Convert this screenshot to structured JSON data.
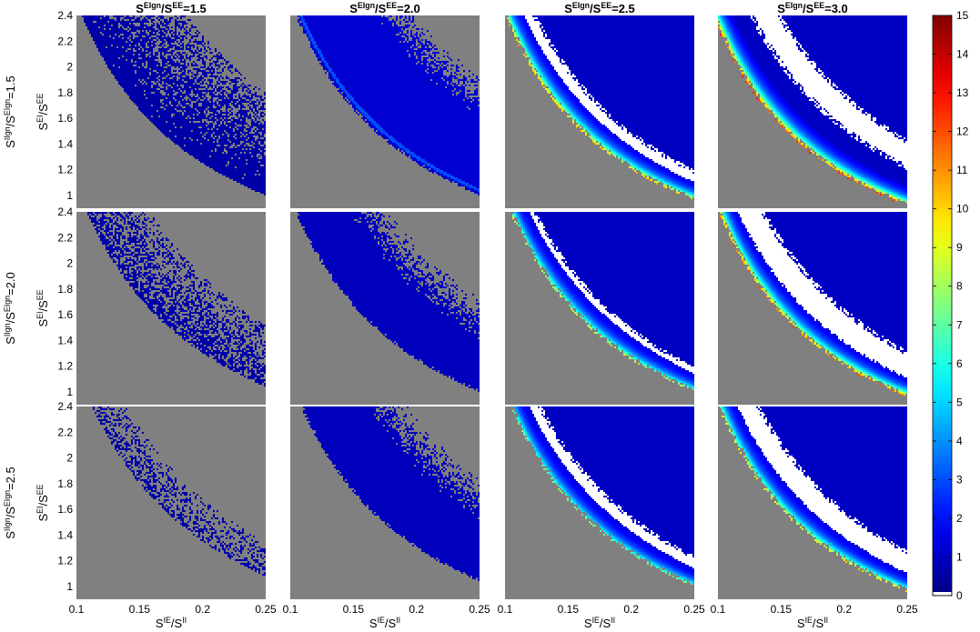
{
  "chart_data": {
    "type": "heatmap",
    "grid": false,
    "col_titles": [
      {
        "base": "S",
        "sup1": "EIgn",
        "mid": "/S",
        "sup2": "EE",
        "value": "=1.5"
      },
      {
        "base": "S",
        "sup1": "EIgn",
        "mid": "/S",
        "sup2": "EE",
        "value": "=2.0"
      },
      {
        "base": "S",
        "sup1": "EIgn",
        "mid": "/S",
        "sup2": "EE",
        "value": "=2.5"
      },
      {
        "base": "S",
        "sup1": "EIgn",
        "mid": "/S",
        "sup2": "EE",
        "value": "=3.0"
      }
    ],
    "row_titles": [
      {
        "base": "S",
        "sup1": "IIgn",
        "mid": "/S",
        "sup2": "EIgn",
        "value": "=1.5"
      },
      {
        "base": "S",
        "sup1": "IIgn",
        "mid": "/S",
        "sup2": "EIgn",
        "value": "=2.0"
      },
      {
        "base": "S",
        "sup1": "IIgn",
        "mid": "/S",
        "sup2": "EIgn",
        "value": "=2.5"
      }
    ],
    "xlabel": {
      "base": "S",
      "sup1": "IE",
      "mid": "/S",
      "sup2": "II"
    },
    "ylabel": {
      "base": "S",
      "sup1": "EI",
      "mid": "/S",
      "sup2": "EE"
    },
    "x_ticks": [
      0.1,
      0.15,
      0.2,
      0.25
    ],
    "x_tick_labels": [
      "0.1",
      "0.15",
      "0.2",
      "0.25"
    ],
    "y_ticks": [
      1,
      1.2,
      1.4,
      1.6,
      1.8,
      2,
      2.2,
      2.4
    ],
    "y_tick_labels": [
      "1",
      "1.2",
      "1.4",
      "1.6",
      "1.8",
      "2",
      "2.2",
      "2.4"
    ],
    "xlim": [
      0.1,
      0.25
    ],
    "ylim": [
      0.9,
      2.4
    ],
    "colorbar": {
      "min": 0,
      "max": 15,
      "ticks": [
        0,
        1,
        2,
        3,
        4,
        5,
        6,
        7,
        8,
        9,
        10,
        11,
        12,
        13,
        14,
        15
      ],
      "tick_labels": [
        "0",
        "1",
        "2",
        "3",
        "4",
        "5",
        "6",
        "7",
        "8",
        "9",
        "10",
        "11",
        "12",
        "13",
        "14",
        "15"
      ],
      "colormap": "jet"
    },
    "colors": {
      "masked_region": "#808080",
      "no_data": "#ffffff"
    },
    "panels": [
      {
        "row": 0,
        "col": 0,
        "boundary_k": 0.25,
        "fill": "sparse",
        "density": 0.85,
        "fill_value": 0.6
      },
      {
        "row": 0,
        "col": 1,
        "boundary_k": 0.25,
        "fill": "solid",
        "fill_value": 1.2,
        "band_k": 0.26,
        "scatter_k": 0.4
      },
      {
        "row": 0,
        "col": 2,
        "boundary_k": 0.24,
        "fill": "solid",
        "fill_value": 1.0,
        "band_k": 0.25,
        "white_from": 0.25,
        "white_to": 0.3,
        "edge_peak": 10
      },
      {
        "row": 0,
        "col": 3,
        "boundary_k": 0.23,
        "fill": "solid",
        "fill_value": 1.0,
        "band_k": 0.26,
        "white_from": 0.3,
        "white_to": 0.36,
        "edge_peak": 12
      },
      {
        "row": 1,
        "col": 0,
        "boundary_k": 0.26,
        "fill": "sparse",
        "density": 0.45,
        "fill_value": 0.6
      },
      {
        "row": 1,
        "col": 1,
        "boundary_k": 0.25,
        "fill": "solid",
        "fill_value": 0.9,
        "scatter_k": 0.35
      },
      {
        "row": 1,
        "col": 2,
        "boundary_k": 0.25,
        "fill": "solid",
        "fill_value": 1.0,
        "band_k": 0.27,
        "white_from": 0.26,
        "white_to": 0.3,
        "edge_peak": 8
      },
      {
        "row": 1,
        "col": 3,
        "boundary_k": 0.24,
        "fill": "solid",
        "fill_value": 1.0,
        "band_k": 0.28,
        "white_from": 0.27,
        "white_to": 0.33,
        "edge_peak": 11
      },
      {
        "row": 2,
        "col": 0,
        "boundary_k": 0.27,
        "fill": "sparse",
        "density": 0.18,
        "fill_value": 0.6
      },
      {
        "row": 2,
        "col": 1,
        "boundary_k": 0.26,
        "fill": "solid",
        "fill_value": 0.9,
        "scatter_k": 0.38
      },
      {
        "row": 2,
        "col": 2,
        "boundary_k": 0.25,
        "fill": "solid",
        "fill_value": 1.0,
        "band_k": 0.27,
        "white_from": 0.26,
        "white_to": 0.31,
        "edge_peak": 7
      },
      {
        "row": 2,
        "col": 3,
        "boundary_k": 0.24,
        "fill": "solid",
        "fill_value": 1.0,
        "band_k": 0.28,
        "white_from": 0.27,
        "white_to": 0.32,
        "edge_peak": 9
      }
    ]
  }
}
